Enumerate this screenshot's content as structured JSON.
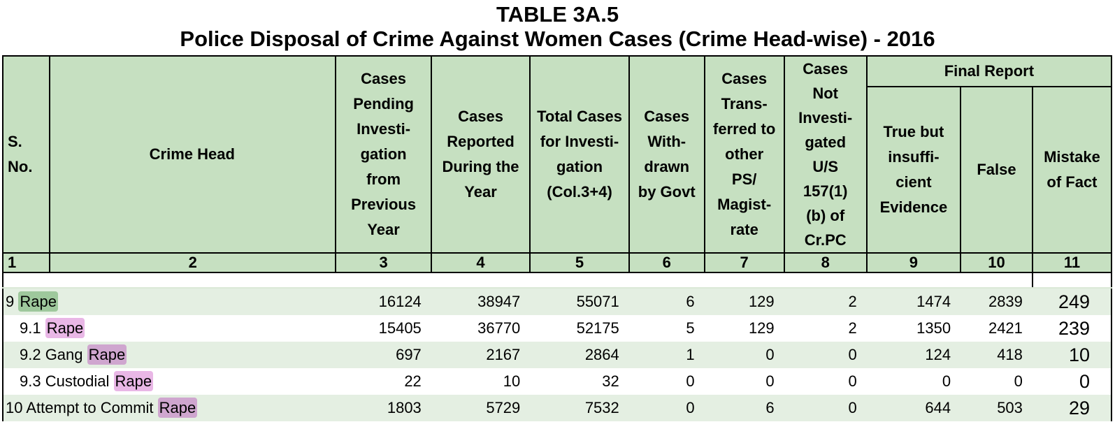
{
  "title": "TABLE 3A.5",
  "subtitle": "Police Disposal of Crime Against Women Cases (Crime Head-wise) - 2016",
  "headers": {
    "sno": "S. No.",
    "crime_head": "Crime Head",
    "pending": [
      "Cases",
      "Pending",
      "Investi-",
      "gation",
      "from",
      "Previous",
      "Year"
    ],
    "reported": [
      "Cases",
      "Reported",
      "During the",
      "Year"
    ],
    "total": [
      "Total Cases",
      "for Investi-",
      "gation",
      "(Col.3+4)"
    ],
    "withdrawn": [
      "Cases",
      "With-",
      "drawn",
      "by Govt"
    ],
    "transferred": [
      "Cases",
      "Trans-",
      "ferred to",
      "other",
      "PS/",
      "Magist-",
      "rate"
    ],
    "not_investigated": [
      "Cases",
      "Not",
      "Investi-",
      "gated",
      "U/S",
      "157(1)",
      "(b) of",
      "Cr.PC"
    ],
    "final_report": "Final Report",
    "true_insufficient": [
      "True but",
      "insuffi-",
      "cient",
      "Evidence"
    ],
    "false": "False",
    "mistake": [
      "Mistake",
      "of Fact"
    ]
  },
  "column_numbers": [
    "1",
    "2",
    "3",
    "4",
    "5",
    "6",
    "7",
    "8",
    "9",
    "10",
    "11"
  ],
  "rows": [
    {
      "prefix": "9 ",
      "highlight": "Rape",
      "values": [
        "16124",
        "38947",
        "55071",
        "6",
        "129",
        "2",
        "1474",
        "2839",
        "249"
      ]
    },
    {
      "prefix": "9.1 ",
      "highlight": "Rape",
      "values": [
        "15405",
        "36770",
        "52175",
        "5",
        "129",
        "2",
        "1350",
        "2421",
        "239"
      ]
    },
    {
      "prefix": "9.2 Gang ",
      "highlight": "Rape",
      "values": [
        "697",
        "2167",
        "2864",
        "1",
        "0",
        "0",
        "124",
        "418",
        "10"
      ]
    },
    {
      "prefix": "9.3 Custodial ",
      "highlight": "Rape",
      "values": [
        "22",
        "10",
        "32",
        "0",
        "0",
        "0",
        "0",
        "0",
        "0"
      ]
    },
    {
      "prefix": "10 Attempt to Commit ",
      "highlight": "Rape",
      "values": [
        "1803",
        "5729",
        "7532",
        "0",
        "6",
        "0",
        "644",
        "503",
        "29"
      ]
    }
  ],
  "colors": {
    "header_bg": "#c6e0c1",
    "row_stripe": "#e4efe2",
    "highlight_green": "#9ec89c",
    "highlight_pink": "#e9b7e6",
    "highlight_mauve": "#cfa6cf"
  }
}
